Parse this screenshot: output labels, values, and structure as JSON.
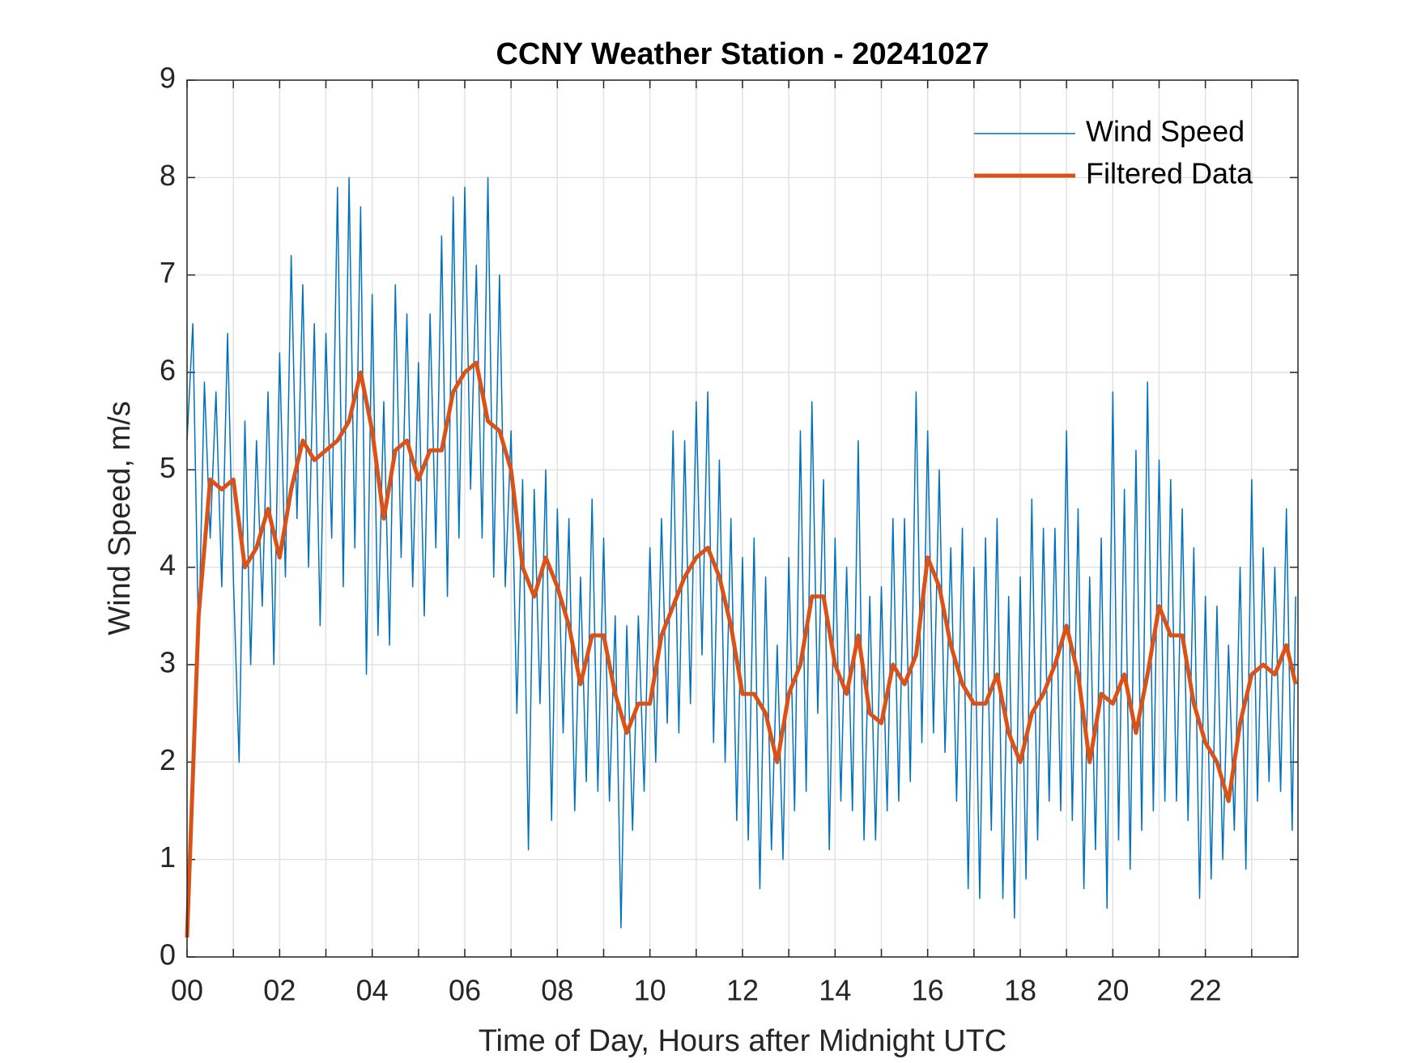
{
  "chart_data": {
    "type": "line",
    "title": "CCNY Weather Station - 20241027",
    "x_label": "Time of Day, Hours after Midnight UTC",
    "y_label": "Wind Speed, m/s",
    "xlim": [
      0,
      24
    ],
    "ylim": [
      0,
      9
    ],
    "xticks": [
      {
        "value": 0,
        "label": "00"
      },
      {
        "value": 2,
        "label": "02"
      },
      {
        "value": 4,
        "label": "04"
      },
      {
        "value": 6,
        "label": "06"
      },
      {
        "value": 8,
        "label": "08"
      },
      {
        "value": 10,
        "label": "10"
      },
      {
        "value": 12,
        "label": "12"
      },
      {
        "value": 14,
        "label": "14"
      },
      {
        "value": 16,
        "label": "16"
      },
      {
        "value": 18,
        "label": "18"
      },
      {
        "value": 20,
        "label": "20"
      },
      {
        "value": 22,
        "label": "22"
      }
    ],
    "xminorticks": [
      1,
      3,
      5,
      7,
      9,
      11,
      13,
      15,
      17,
      19,
      21,
      23
    ],
    "yticks": [
      0,
      1,
      2,
      3,
      4,
      5,
      6,
      7,
      8,
      9
    ],
    "grid": true,
    "legend_position": "northeast",
    "series": [
      {
        "name": "Wind Speed",
        "color": "#0072BD",
        "width": 1.5,
        "x": [
          0,
          0.125,
          0.25,
          0.375,
          0.5,
          0.625,
          0.75,
          0.875,
          1,
          1.125,
          1.25,
          1.375,
          1.5,
          1.625,
          1.75,
          1.875,
          2,
          2.125,
          2.25,
          2.375,
          2.5,
          2.625,
          2.75,
          2.875,
          3,
          3.125,
          3.25,
          3.375,
          3.5,
          3.625,
          3.75,
          3.875,
          4,
          4.125,
          4.25,
          4.375,
          4.5,
          4.625,
          4.75,
          4.875,
          5,
          5.125,
          5.25,
          5.375,
          5.5,
          5.625,
          5.75,
          5.875,
          6,
          6.125,
          6.25,
          6.375,
          6.5,
          6.625,
          6.75,
          6.875,
          7,
          7.125,
          7.25,
          7.375,
          7.5,
          7.625,
          7.75,
          7.875,
          8,
          8.125,
          8.25,
          8.375,
          8.5,
          8.625,
          8.75,
          8.875,
          9,
          9.125,
          9.25,
          9.375,
          9.5,
          9.625,
          9.75,
          9.875,
          10,
          10.125,
          10.25,
          10.375,
          10.5,
          10.625,
          10.75,
          10.875,
          11,
          11.125,
          11.25,
          11.375,
          11.5,
          11.625,
          11.75,
          11.875,
          12,
          12.125,
          12.25,
          12.375,
          12.5,
          12.625,
          12.75,
          12.875,
          13,
          13.125,
          13.25,
          13.375,
          13.5,
          13.625,
          13.75,
          13.875,
          14,
          14.125,
          14.25,
          14.375,
          14.5,
          14.625,
          14.75,
          14.875,
          15,
          15.125,
          15.25,
          15.375,
          15.5,
          15.625,
          15.75,
          15.875,
          16,
          16.125,
          16.25,
          16.375,
          16.5,
          16.625,
          16.75,
          16.875,
          17,
          17.125,
          17.25,
          17.375,
          17.5,
          17.625,
          17.75,
          17.875,
          18,
          18.125,
          18.25,
          18.375,
          18.5,
          18.625,
          18.75,
          18.875,
          19,
          19.125,
          19.25,
          19.375,
          19.5,
          19.625,
          19.75,
          19.875,
          20,
          20.125,
          20.25,
          20.375,
          20.5,
          20.625,
          20.75,
          20.875,
          21,
          21.125,
          21.25,
          21.375,
          21.5,
          21.625,
          21.75,
          21.875,
          22,
          22.125,
          22.25,
          22.375,
          22.5,
          22.625,
          22.75,
          22.875,
          23,
          23.125,
          23.25,
          23.375,
          23.5,
          23.625,
          23.75,
          23.875,
          23.95
        ],
        "values": [
          5.3,
          6.5,
          3.2,
          5.9,
          4.3,
          5.8,
          3.8,
          6.4,
          3.9,
          2.0,
          5.5,
          3.0,
          5.3,
          3.6,
          5.8,
          3.0,
          6.2,
          3.9,
          7.2,
          4.5,
          6.9,
          4.0,
          6.5,
          3.4,
          6.4,
          4.3,
          7.9,
          3.8,
          8.0,
          4.2,
          7.7,
          2.9,
          6.8,
          3.3,
          5.7,
          3.2,
          6.9,
          4.1,
          6.6,
          3.8,
          6.1,
          3.5,
          6.6,
          4.2,
          7.4,
          3.7,
          7.8,
          4.3,
          7.9,
          4.8,
          7.1,
          4.3,
          8.0,
          3.9,
          7.0,
          3.8,
          5.4,
          2.5,
          4.9,
          1.1,
          4.8,
          2.6,
          5.0,
          1.4,
          4.6,
          2.3,
          4.5,
          1.5,
          3.9,
          1.8,
          4.7,
          1.7,
          4.3,
          1.6,
          3.5,
          0.3,
          3.4,
          1.3,
          3.5,
          1.7,
          4.2,
          2.0,
          4.5,
          2.4,
          5.4,
          2.3,
          5.3,
          2.6,
          5.7,
          3.1,
          5.8,
          2.2,
          5.1,
          2.0,
          4.5,
          1.4,
          4.1,
          1.2,
          4.3,
          0.7,
          3.9,
          1.1,
          3.2,
          1.0,
          4.1,
          1.5,
          5.4,
          1.7,
          5.7,
          2.5,
          4.9,
          1.1,
          4.3,
          1.6,
          4.0,
          1.5,
          5.3,
          1.2,
          3.7,
          1.2,
          3.8,
          1.5,
          4.5,
          1.6,
          4.5,
          1.8,
          5.8,
          2.2,
          5.4,
          2.3,
          5.0,
          2.1,
          4.2,
          1.6,
          4.4,
          0.7,
          4.0,
          0.6,
          4.3,
          1.3,
          4.5,
          0.6,
          3.7,
          0.4,
          3.9,
          0.8,
          4.7,
          1.2,
          4.4,
          1.6,
          4.4,
          1.5,
          5.4,
          1.4,
          4.6,
          0.7,
          3.9,
          1.1,
          4.3,
          0.5,
          5.8,
          1.2,
          4.8,
          0.9,
          5.2,
          1.3,
          5.9,
          1.5,
          5.1,
          1.6,
          4.9,
          1.6,
          4.6,
          1.4,
          4.2,
          0.6,
          3.7,
          0.8,
          3.6,
          1.0,
          3.2,
          1.3,
          4.0,
          0.9,
          4.9,
          1.6,
          4.2,
          1.8,
          4.0,
          1.7,
          4.6,
          1.3,
          3.7
        ]
      },
      {
        "name": "Filtered Data",
        "color": "#D95319",
        "width": 5,
        "x": [
          0,
          0.25,
          0.5,
          0.75,
          1,
          1.25,
          1.5,
          1.75,
          2,
          2.25,
          2.5,
          2.75,
          3,
          3.25,
          3.5,
          3.75,
          4,
          4.25,
          4.5,
          4.75,
          5,
          5.25,
          5.5,
          5.75,
          6,
          6.25,
          6.5,
          6.75,
          7,
          7.25,
          7.5,
          7.75,
          8,
          8.25,
          8.5,
          8.75,
          9,
          9.25,
          9.5,
          9.75,
          10,
          10.25,
          10.5,
          10.75,
          11,
          11.25,
          11.5,
          11.75,
          12,
          12.25,
          12.5,
          12.75,
          13,
          13.25,
          13.5,
          13.75,
          14,
          14.25,
          14.5,
          14.75,
          15,
          15.25,
          15.5,
          15.75,
          16,
          16.25,
          16.5,
          16.75,
          17,
          17.25,
          17.5,
          17.75,
          18,
          18.25,
          18.5,
          18.75,
          19,
          19.25,
          19.5,
          19.75,
          20,
          20.25,
          20.5,
          20.75,
          21,
          21.25,
          21.5,
          21.75,
          22,
          22.25,
          22.5,
          22.75,
          23,
          23.25,
          23.5,
          23.75,
          23.95
        ],
        "values": [
          0.2,
          3.5,
          4.9,
          4.8,
          4.9,
          4.0,
          4.2,
          4.6,
          4.1,
          4.8,
          5.3,
          5.1,
          5.2,
          5.3,
          5.5,
          6.0,
          5.4,
          4.5,
          5.2,
          5.3,
          4.9,
          5.2,
          5.2,
          5.8,
          6.0,
          6.1,
          5.5,
          5.4,
          5.0,
          4.0,
          3.7,
          4.1,
          3.8,
          3.4,
          2.8,
          3.3,
          3.3,
          2.7,
          2.3,
          2.6,
          2.6,
          3.3,
          3.6,
          3.9,
          4.1,
          4.2,
          3.9,
          3.4,
          2.7,
          2.7,
          2.5,
          2.0,
          2.7,
          3.0,
          3.7,
          3.7,
          3.0,
          2.7,
          3.3,
          2.5,
          2.4,
          3.0,
          2.8,
          3.1,
          4.1,
          3.8,
          3.2,
          2.8,
          2.6,
          2.6,
          2.9,
          2.3,
          2.0,
          2.5,
          2.7,
          3.0,
          3.4,
          2.9,
          2.0,
          2.7,
          2.6,
          2.9,
          2.3,
          2.9,
          3.6,
          3.3,
          3.3,
          2.6,
          2.2,
          2.0,
          1.6,
          2.4,
          2.9,
          3.0,
          2.9,
          3.2,
          2.8
        ]
      }
    ]
  }
}
